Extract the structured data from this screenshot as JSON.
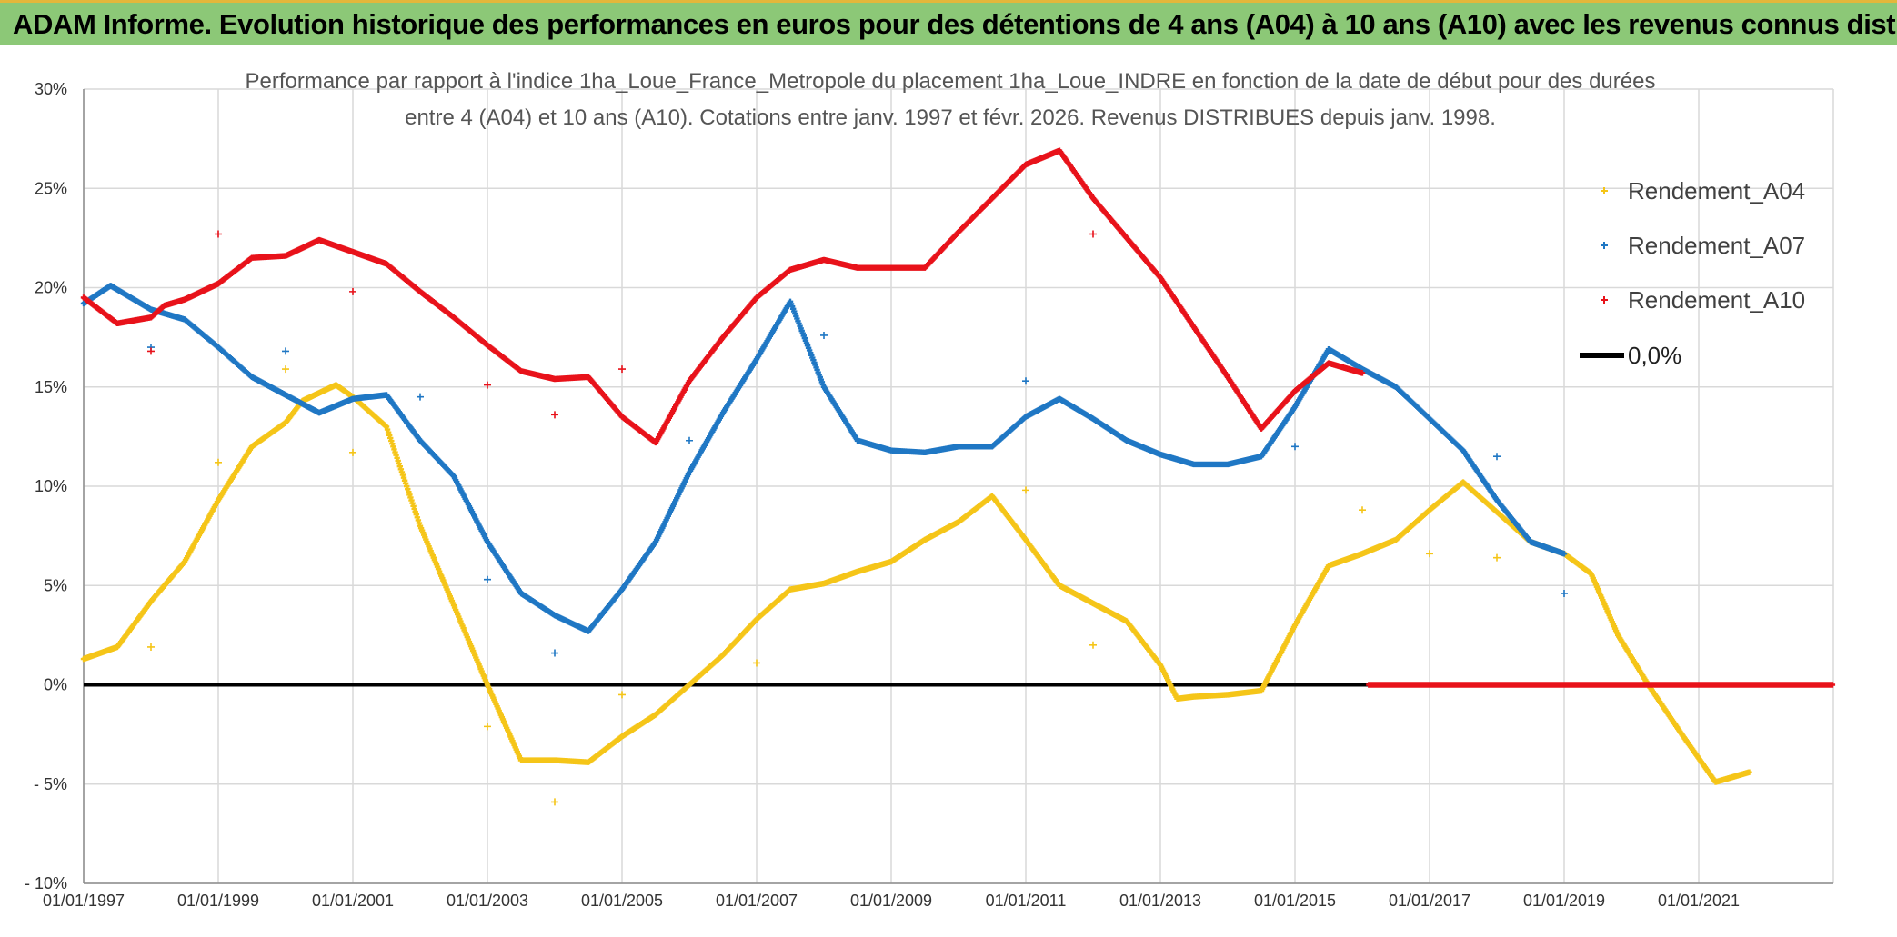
{
  "header": {
    "title": "ADAM Informe. Evolution historique des performances en euros pour des détentions de 4 ans (A04) à 10 ans (A10) avec les revenus connus distribués"
  },
  "chart_data": {
    "type": "scatter",
    "title_line1": "Performance par rapport à l'indice 1ha_Loue_France_Metropole  du placement 1ha_Loue_INDRE en fonction de la date de début pour des durées",
    "title_line2": "entre 4 (A04) et 10 ans (A10). Cotations entre janv. 1997 et févr. 2026. Revenus DISTRIBUES depuis janv. 1998.",
    "xlabel": "",
    "ylabel": "",
    "xlim": [
      1997.0,
      2023.0
    ],
    "ylim": [
      -10,
      30
    ],
    "x_ticks": [
      {
        "value": 1997,
        "label": "01/01/1997"
      },
      {
        "value": 1999,
        "label": "01/01/1999"
      },
      {
        "value": 2001,
        "label": "01/01/2001"
      },
      {
        "value": 2003,
        "label": "01/01/2003"
      },
      {
        "value": 2005,
        "label": "01/01/2005"
      },
      {
        "value": 2007,
        "label": "01/01/2007"
      },
      {
        "value": 2009,
        "label": "01/01/2009"
      },
      {
        "value": 2011,
        "label": "01/01/2011"
      },
      {
        "value": 2013,
        "label": "01/01/2013"
      },
      {
        "value": 2015,
        "label": "01/01/2015"
      },
      {
        "value": 2017,
        "label": "01/01/2017"
      },
      {
        "value": 2019,
        "label": "01/01/2019"
      },
      {
        "value": 2021,
        "label": "01/01/2021"
      }
    ],
    "y_ticks": [
      {
        "value": 30,
        "label": "30%"
      },
      {
        "value": 25,
        "label": "25%"
      },
      {
        "value": 20,
        "label": "20%"
      },
      {
        "value": 15,
        "label": "15%"
      },
      {
        "value": 10,
        "label": "10%"
      },
      {
        "value": 5,
        "label": "5%"
      },
      {
        "value": 0,
        "label": "0%"
      },
      {
        "value": -5,
        "label": "- 5%"
      },
      {
        "value": -10,
        "label": "- 10%"
      }
    ],
    "legend_position": "top-right",
    "grid": true,
    "series": [
      {
        "name": "Rendement_A04",
        "color": "#f5c518",
        "marker": "plus",
        "points": [
          [
            1997.0,
            1.3
          ],
          [
            1997.5,
            1.9
          ],
          [
            1998.0,
            4.2
          ],
          [
            1998.5,
            6.2
          ],
          [
            1999.0,
            9.3
          ],
          [
            1999.5,
            12.0
          ],
          [
            2000.0,
            13.2
          ],
          [
            2000.25,
            14.3
          ],
          [
            2000.5,
            14.7
          ],
          [
            2000.75,
            15.1
          ],
          [
            2001.0,
            14.5
          ],
          [
            2001.5,
            13.0
          ],
          [
            2002.0,
            8.0
          ],
          [
            2002.5,
            4.0
          ],
          [
            2003.0,
            0.0
          ],
          [
            2003.5,
            -3.8
          ],
          [
            2004.0,
            -3.8
          ],
          [
            2004.5,
            -3.9
          ],
          [
            2005.0,
            -2.6
          ],
          [
            2005.5,
            -1.5
          ],
          [
            2006.0,
            0.0
          ],
          [
            2006.5,
            1.5
          ],
          [
            2007.0,
            3.3
          ],
          [
            2007.5,
            4.8
          ],
          [
            2008.0,
            5.1
          ],
          [
            2008.5,
            5.7
          ],
          [
            2009.0,
            6.2
          ],
          [
            2009.5,
            7.3
          ],
          [
            2010.0,
            8.2
          ],
          [
            2010.5,
            9.5
          ],
          [
            2011.0,
            7.3
          ],
          [
            2011.5,
            5.0
          ],
          [
            2012.0,
            4.1
          ],
          [
            2012.5,
            3.2
          ],
          [
            2013.0,
            1.0
          ],
          [
            2013.25,
            -0.7
          ],
          [
            2013.5,
            -0.6
          ],
          [
            2014.0,
            -0.5
          ],
          [
            2014.5,
            -0.3
          ],
          [
            2015.0,
            3.0
          ],
          [
            2015.5,
            6.0
          ],
          [
            2016.0,
            6.6
          ],
          [
            2016.5,
            7.3
          ],
          [
            2017.0,
            8.8
          ],
          [
            2017.5,
            10.2
          ],
          [
            2018.0,
            8.7
          ],
          [
            2018.5,
            7.2
          ],
          [
            2019.0,
            6.6
          ],
          [
            2019.4,
            5.6
          ],
          [
            2019.8,
            2.5
          ],
          [
            2020.25,
            0.0
          ],
          [
            2020.75,
            -2.5
          ],
          [
            2021.25,
            -4.9
          ],
          [
            2021.75,
            -4.4
          ]
        ],
        "outliers": [
          [
            1998.0,
            1.9
          ],
          [
            1999.0,
            11.2
          ],
          [
            2000.0,
            15.9
          ],
          [
            2001.0,
            11.7
          ],
          [
            2003.0,
            -2.1
          ],
          [
            2004.0,
            -5.9
          ],
          [
            2005.0,
            -0.5
          ],
          [
            2007.0,
            1.1
          ],
          [
            2011.0,
            9.8
          ],
          [
            2012.0,
            2.0
          ],
          [
            2016.0,
            8.8
          ],
          [
            2017.0,
            6.6
          ],
          [
            2018.0,
            6.4
          ]
        ]
      },
      {
        "name": "Rendement_A07",
        "color": "#1f77c4",
        "marker": "plus",
        "points": [
          [
            1997.0,
            19.2
          ],
          [
            1997.4,
            20.1
          ],
          [
            1998.0,
            18.9
          ],
          [
            1998.5,
            18.4
          ],
          [
            1999.0,
            17.0
          ],
          [
            1999.5,
            15.5
          ],
          [
            2000.0,
            14.6
          ],
          [
            2000.5,
            13.7
          ],
          [
            2001.0,
            14.4
          ],
          [
            2001.5,
            14.6
          ],
          [
            2002.0,
            12.3
          ],
          [
            2002.5,
            10.5
          ],
          [
            2003.0,
            7.2
          ],
          [
            2003.5,
            4.6
          ],
          [
            2004.0,
            3.5
          ],
          [
            2004.5,
            2.7
          ],
          [
            2005.0,
            4.8
          ],
          [
            2005.5,
            7.2
          ],
          [
            2006.0,
            10.7
          ],
          [
            2006.5,
            13.7
          ],
          [
            2007.0,
            16.4
          ],
          [
            2007.5,
            19.3
          ],
          [
            2008.0,
            15.0
          ],
          [
            2008.5,
            12.3
          ],
          [
            2009.0,
            11.8
          ],
          [
            2009.5,
            11.7
          ],
          [
            2010.0,
            12.0
          ],
          [
            2010.5,
            12.0
          ],
          [
            2011.0,
            13.5
          ],
          [
            2011.5,
            14.4
          ],
          [
            2012.0,
            13.4
          ],
          [
            2012.5,
            12.3
          ],
          [
            2013.0,
            11.6
          ],
          [
            2013.5,
            11.1
          ],
          [
            2014.0,
            11.1
          ],
          [
            2014.5,
            11.5
          ],
          [
            2015.0,
            14.0
          ],
          [
            2015.5,
            16.9
          ],
          [
            2016.0,
            15.9
          ],
          [
            2016.5,
            15.0
          ],
          [
            2017.0,
            13.4
          ],
          [
            2017.5,
            11.8
          ],
          [
            2018.0,
            9.3
          ],
          [
            2018.5,
            7.2
          ],
          [
            2019.0,
            6.6
          ]
        ],
        "outliers": [
          [
            1998.0,
            17.0
          ],
          [
            2000.0,
            16.8
          ],
          [
            2002.0,
            14.5
          ],
          [
            2003.0,
            5.3
          ],
          [
            2004.0,
            1.6
          ],
          [
            2006.0,
            12.3
          ],
          [
            2008.0,
            17.6
          ],
          [
            2011.0,
            15.3
          ],
          [
            2015.0,
            12.0
          ],
          [
            2018.0,
            11.5
          ],
          [
            2019.0,
            4.6
          ]
        ]
      },
      {
        "name": "Rendement_A10",
        "color": "#e8121a",
        "marker": "plus",
        "points": [
          [
            1997.0,
            19.5
          ],
          [
            1997.5,
            18.2
          ],
          [
            1998.0,
            18.5
          ],
          [
            1998.2,
            19.1
          ],
          [
            1998.5,
            19.4
          ],
          [
            1999.0,
            20.2
          ],
          [
            1999.5,
            21.5
          ],
          [
            2000.0,
            21.6
          ],
          [
            2000.5,
            22.4
          ],
          [
            2001.0,
            21.8
          ],
          [
            2001.5,
            21.2
          ],
          [
            2002.0,
            19.8
          ],
          [
            2002.5,
            18.5
          ],
          [
            2003.0,
            17.1
          ],
          [
            2003.5,
            15.8
          ],
          [
            2004.0,
            15.4
          ],
          [
            2004.5,
            15.5
          ],
          [
            2005.0,
            13.5
          ],
          [
            2005.5,
            12.2
          ],
          [
            2006.0,
            15.3
          ],
          [
            2006.5,
            17.5
          ],
          [
            2007.0,
            19.5
          ],
          [
            2007.5,
            20.9
          ],
          [
            2008.0,
            21.4
          ],
          [
            2008.5,
            21.0
          ],
          [
            2009.0,
            21.0
          ],
          [
            2009.5,
            21.0
          ],
          [
            2010.0,
            22.8
          ],
          [
            2010.5,
            24.5
          ],
          [
            2011.0,
            26.2
          ],
          [
            2011.5,
            26.9
          ],
          [
            2012.0,
            24.5
          ],
          [
            2012.5,
            22.5
          ],
          [
            2013.0,
            20.5
          ],
          [
            2013.5,
            18.0
          ],
          [
            2014.0,
            15.5
          ],
          [
            2014.5,
            12.9
          ],
          [
            2015.0,
            14.8
          ],
          [
            2015.5,
            16.2
          ],
          [
            2016.0,
            15.7
          ]
        ],
        "zero_segment": [
          2016.1,
          2023.0
        ],
        "outliers": [
          [
            1999.0,
            22.7
          ],
          [
            1998.0,
            16.8
          ],
          [
            2001.0,
            19.8
          ],
          [
            2003.0,
            15.1
          ],
          [
            2004.0,
            13.6
          ],
          [
            2005.0,
            15.9
          ],
          [
            2012.0,
            22.7
          ]
        ]
      },
      {
        "name": "0,0%",
        "color": "#000000",
        "type": "line",
        "y": 0
      }
    ]
  }
}
